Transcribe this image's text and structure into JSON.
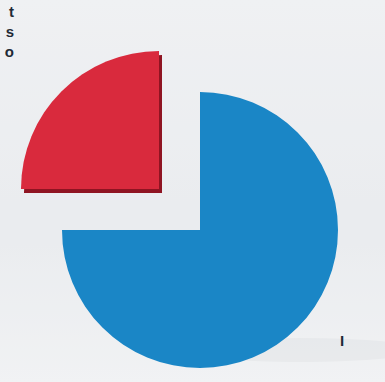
{
  "chart_data": {
    "type": "pie",
    "values": [
      75,
      25
    ],
    "colors": [
      "#1a86c6",
      "#d92a3d"
    ],
    "annotations": [
      "t",
      "s",
      "o",
      "I"
    ]
  }
}
